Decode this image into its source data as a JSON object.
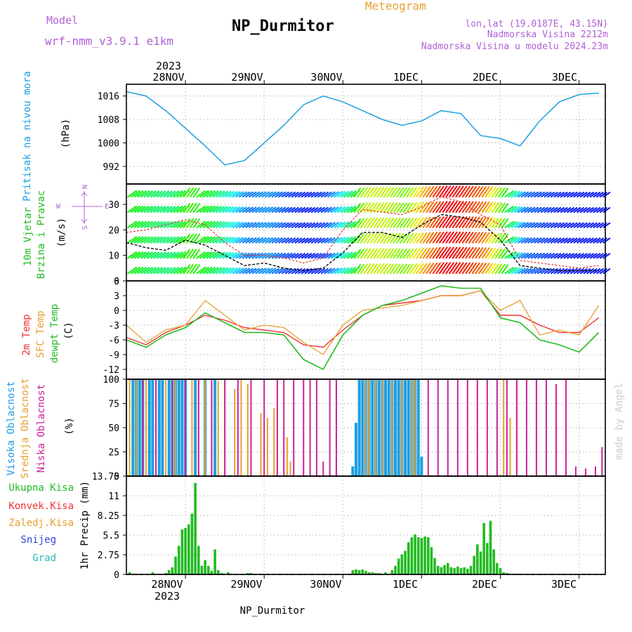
{
  "header": {
    "model_label": "Model",
    "model_name": "wrf-nmm_v3.9.1  e1km",
    "station": "NP_Durmitor",
    "meteogram": "Meteogram",
    "lonlat": "lon,lat (19.0187E, 43.15N)",
    "elevation": "Nadmorska Visina 2212m",
    "model_elevation": "Nadmorska Visina u modelu 2024.23m"
  },
  "footer": {
    "station": "NP_Durmitor",
    "watermark": "made by Angel"
  },
  "colors": {
    "pressure": "#1e9fe0",
    "wind_title": "#22bb22",
    "temp2m": "#ee3333",
    "sfc": "#e6a030",
    "dewpt": "#22bb22",
    "cloud_high": "#1e9fe0",
    "cloud_mid": "#e6a030",
    "cloud_low": "#cc2299",
    "purple": "#b060d8"
  },
  "x_axis": {
    "top_year": "2023",
    "bottom_year": "2023",
    "labels": [
      "28NOV",
      "29NOV",
      "30NOV",
      "1DEC",
      "2DEC",
      "3DEC"
    ]
  },
  "panels": {
    "pressure": {
      "title": "Pritisak na nivou mora",
      "unit": "(hPa)"
    },
    "wind": {
      "title1": "10m Vjetar",
      "title2": "Brzina i Pravac",
      "unit": "(m/s)",
      "compass_n": "N",
      "compass_s": "S",
      "compass_w": "W",
      "compass_e": "E"
    },
    "temperature": {
      "title_2m": "2m Temp",
      "title_sfc": "SFC Temp",
      "title_dewpt": "dewpt Temp",
      "unit": "(C)"
    },
    "cloud": {
      "title_high": "Visoka Oblacnost",
      "title_mid": "Srednja Oblacnost",
      "title_low": "Niska Oblacnost",
      "unit": "(%)"
    },
    "precip": {
      "unit": "1hr Precip (mm)",
      "legend": [
        "Ukupna Kisa",
        "Konvek.Kisa",
        "Zaledj.Kisa",
        "Snijeg",
        "Grad"
      ]
    }
  },
  "chart_data": [
    {
      "type": "line",
      "panel": "pressure",
      "x": [
        0,
        6,
        12,
        18,
        24,
        30,
        36,
        42,
        48,
        54,
        60,
        66,
        72,
        78,
        84,
        90,
        96,
        102,
        108,
        114,
        120,
        126,
        132,
        138,
        144
      ],
      "x_unit": "hours from 27NOV 12UTC",
      "ylim": [
        986,
        1020
      ],
      "yticks": [
        992,
        1000,
        1008,
        1016
      ],
      "series": [
        {
          "values": [
            1017.5,
            1016,
            1011,
            1005,
            999,
            992.5,
            994,
            1000,
            1006,
            1013,
            1016,
            1014,
            1011,
            1008,
            1006,
            1007.5,
            1011,
            1010,
            1002.5,
            1001.5,
            999,
            1007.5,
            1014,
            1016.5,
            1017
          ]
        }
      ]
    },
    {
      "type": "line",
      "panel": "wind",
      "x": [
        0,
        6,
        12,
        18,
        24,
        30,
        36,
        42,
        48,
        54,
        60,
        66,
        72,
        78,
        84,
        90,
        96,
        102,
        108,
        114,
        120,
        126,
        132,
        138,
        144
      ],
      "ylim": [
        0,
        38
      ],
      "yticks": [
        0,
        10,
        20,
        30
      ],
      "series": [
        {
          "name": "speed",
          "values": [
            15,
            13,
            12,
            16,
            14,
            10,
            6,
            7,
            5,
            4,
            5,
            11,
            19,
            19,
            17,
            22,
            26,
            25,
            23,
            16,
            6,
            5,
            4,
            4,
            4
          ]
        },
        {
          "name": "gust",
          "values": [
            19,
            20,
            22,
            24,
            22,
            15,
            10,
            10,
            9,
            7,
            9,
            20,
            28,
            27,
            26,
            29,
            33,
            31,
            26,
            22,
            8,
            7,
            6,
            5,
            6
          ]
        }
      ]
    },
    {
      "type": "line",
      "panel": "temperature",
      "x": [
        0,
        6,
        12,
        18,
        24,
        30,
        36,
        42,
        48,
        54,
        60,
        66,
        72,
        78,
        84,
        90,
        96,
        102,
        108,
        114,
        120,
        126,
        132,
        138,
        144
      ],
      "ylim": [
        -14,
        6
      ],
      "yticks": [
        -12,
        -9,
        -6,
        -3,
        0,
        3,
        6
      ],
      "series": [
        {
          "name": "2m Temp",
          "values": [
            -5.5,
            -7,
            -4.5,
            -3,
            -1,
            -2,
            -3.5,
            -4,
            -4.5,
            -7,
            -7.5,
            -4,
            -1,
            1,
            1.5,
            2,
            3,
            3,
            4,
            -1,
            -1,
            -3,
            -4.5,
            -4.5,
            -1.5
          ]
        },
        {
          "name": "SFC Temp",
          "values": [
            -3,
            -6.5,
            -4,
            -3,
            2,
            -1,
            -4,
            -3,
            -3.5,
            -6.5,
            -9,
            -3,
            0,
            0.5,
            1,
            2,
            3,
            3,
            4,
            0,
            2,
            -5,
            -4,
            -5,
            1
          ]
        },
        {
          "name": "dewpt Temp",
          "values": [
            -6,
            -7.5,
            -5,
            -3.5,
            -0.5,
            -2.5,
            -4.5,
            -4.5,
            -5,
            -10,
            -12,
            -5,
            -1,
            1,
            2,
            3.5,
            5,
            4.5,
            4.5,
            -1.5,
            -2.5,
            -6,
            -7,
            -8.5,
            -4.5
          ]
        }
      ]
    },
    {
      "type": "bar",
      "panel": "cloud",
      "x_unit": "hours from 27NOV 12UTC",
      "ylim": [
        0,
        100
      ],
      "yticks": [
        0,
        25,
        50,
        75,
        100
      ],
      "series": [
        {
          "name": "Visoka Oblacnost",
          "x": [
            2,
            3,
            4,
            5,
            7,
            8,
            10,
            11,
            13,
            14,
            15,
            16,
            17,
            18,
            21,
            24,
            27,
            69,
            70,
            71,
            72,
            73,
            74,
            75,
            76,
            77,
            78,
            79,
            80,
            81,
            82,
            83,
            84,
            85,
            86,
            87,
            88,
            89,
            90
          ],
          "values": [
            100,
            100,
            100,
            100,
            100,
            100,
            100,
            100,
            100,
            100,
            100,
            100,
            100,
            100,
            100,
            100,
            100,
            10,
            55,
            100,
            100,
            100,
            100,
            100,
            100,
            100,
            100,
            100,
            100,
            100,
            100,
            100,
            100,
            100,
            100,
            100,
            100,
            100,
            20
          ]
        },
        {
          "name": "Srednja Oblacnost",
          "x": [
            1,
            3,
            6,
            9,
            12,
            15,
            18,
            20,
            22,
            24,
            26,
            28,
            30,
            33,
            35,
            37,
            41,
            43,
            45,
            46,
            49,
            50,
            73,
            74,
            76,
            78,
            81,
            84,
            87,
            88,
            115,
            117,
            119
          ],
          "values": [
            100,
            100,
            100,
            100,
            100,
            100,
            100,
            100,
            100,
            100,
            95,
            98,
            100,
            90,
            100,
            95,
            65,
            60,
            70,
            70,
            40,
            15,
            100,
            100,
            100,
            100,
            100,
            100,
            100,
            100,
            100,
            60,
            100
          ]
        },
        {
          "name": "Niska Oblacnost",
          "x": [
            0,
            5,
            9,
            14,
            18,
            22,
            26,
            30,
            34,
            38,
            42,
            46,
            48,
            51,
            54,
            56,
            58,
            60,
            62,
            64,
            92,
            95,
            98,
            101,
            104,
            107,
            110,
            113,
            116,
            119,
            122,
            125,
            128,
            131,
            134,
            137,
            140,
            143,
            145
          ],
          "values": [
            100,
            100,
            100,
            100,
            100,
            100,
            100,
            100,
            100,
            100,
            100,
            100,
            100,
            100,
            100,
            100,
            100,
            15,
            100,
            100,
            100,
            100,
            100,
            100,
            100,
            100,
            100,
            100,
            100,
            100,
            100,
            100,
            100,
            95,
            100,
            10,
            8,
            10,
            30
          ]
        }
      ]
    },
    {
      "type": "bar",
      "panel": "precip",
      "x": [
        1,
        8,
        12,
        13,
        14,
        15,
        16,
        17,
        18,
        19,
        20,
        21,
        22,
        23,
        24,
        25,
        26,
        27,
        28,
        29,
        31,
        37,
        38,
        69,
        70,
        71,
        72,
        73,
        74,
        75,
        76,
        77,
        79,
        81,
        82,
        83,
        84,
        85,
        86,
        87,
        88,
        89,
        90,
        91,
        92,
        93,
        94,
        95,
        96,
        97,
        98,
        99,
        100,
        101,
        102,
        103,
        104,
        105,
        106,
        107,
        108,
        109,
        110,
        111,
        112,
        113,
        114,
        115,
        116,
        117,
        118,
        119
      ],
      "ylim": [
        0,
        13.75
      ],
      "yticks": [
        0,
        2.75,
        5.5,
        8.25,
        11,
        13.75
      ],
      "series": [
        {
          "name": "Ukupna Kisa",
          "values": [
            0.3,
            0.3,
            0.2,
            0.6,
            1,
            2.5,
            4,
            6.3,
            6.5,
            7,
            8.5,
            12.8,
            4,
            1.2,
            2,
            1.2,
            0.5,
            3.5,
            0.6,
            0.2,
            0.3,
            0.2,
            0.2,
            0.6,
            0.7,
            0.6,
            0.7,
            0.5,
            0.3,
            0.3,
            0.2,
            0.2,
            0.3,
            0.6,
            1.2,
            2.2,
            2.8,
            3.3,
            4.5,
            5.2,
            5.6,
            5.2,
            5.1,
            5.3,
            5.2,
            3.8,
            2.3,
            1.2,
            1.0,
            1.3,
            1.6,
            1.0,
            0.9,
            1.1,
            0.9,
            1.0,
            0.8,
            1.2,
            2.6,
            4.2,
            3.2,
            7.2,
            4.4,
            7.5,
            3.5,
            1.6,
            0.9,
            0.3,
            0.2,
            0.1,
            0.1,
            0.1
          ]
        }
      ]
    }
  ]
}
